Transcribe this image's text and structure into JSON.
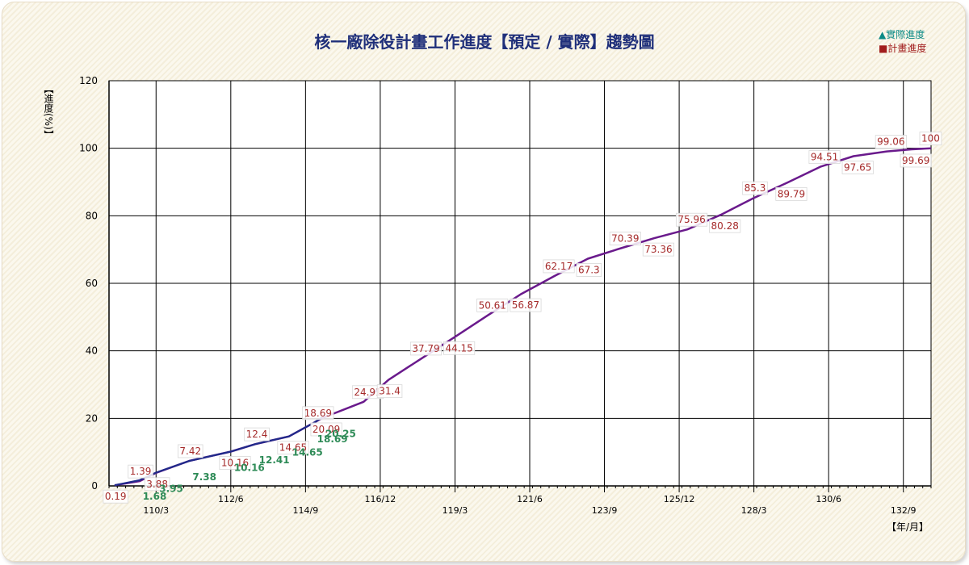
{
  "chart_data": {
    "type": "line",
    "title": "核一廠除役計畫工作進度【預定 / 實際】趨勢圖",
    "xlabel": "【年/月】",
    "ylabel": "【進度(%)】",
    "ylim": [
      0,
      120
    ],
    "yticks": [
      0,
      20,
      40,
      60,
      80,
      100,
      120
    ],
    "xlim": [
      "108/10",
      "133/7"
    ],
    "xtick_labels": [
      "110/3",
      "112/6",
      "114/9",
      "116/12",
      "119/3",
      "121/6",
      "123/9",
      "125/12",
      "128/3",
      "130/6",
      "132/9"
    ],
    "grid": true,
    "legend_position": "top-right",
    "legend": [
      {
        "label": "實際進度",
        "marker": "triangle",
        "color": "#0b8a86"
      },
      {
        "label": "計畫進度",
        "marker": "square",
        "color": "#a11d1d"
      }
    ],
    "series": [
      {
        "name": "計畫進度",
        "color": "#6a1a8c",
        "label_color": "#a52a2a",
        "points": [
          {
            "x": "108/12",
            "y": 0.19,
            "label": "0.19"
          },
          {
            "x": "109/9",
            "y": 1.39,
            "label": "1.39"
          },
          {
            "x": "110/3",
            "y": 3.88,
            "label": "3.88"
          },
          {
            "x": "111/3",
            "y": 7.42,
            "label": "7.42"
          },
          {
            "x": "112/6",
            "y": 10.16,
            "label": "10.16"
          },
          {
            "x": "113/3",
            "y": 12.4,
            "label": "12.4"
          },
          {
            "x": "114/3",
            "y": 14.65,
            "label": "14.65"
          },
          {
            "x": "114/12",
            "y": 18.69,
            "label": "18.69"
          },
          {
            "x": "115/3",
            "y": 20.09,
            "label": "20.09"
          },
          {
            "x": "116/6",
            "y": 24.91,
            "label": "24.91"
          },
          {
            "x": "117/3",
            "y": 31.4,
            "label": "31.4"
          },
          {
            "x": "118/3",
            "y": 37.79,
            "label": "37.79"
          },
          {
            "x": "119/3",
            "y": 44.15,
            "label": "44.15"
          },
          {
            "x": "120/3",
            "y": 50.61,
            "label": "50.61"
          },
          {
            "x": "121/3",
            "y": 56.87,
            "label": "56.87"
          },
          {
            "x": "122/3",
            "y": 62.17,
            "label": "62.17"
          },
          {
            "x": "123/3",
            "y": 67.3,
            "label": "67.3"
          },
          {
            "x": "124/3",
            "y": 70.39,
            "label": "70.39"
          },
          {
            "x": "125/3",
            "y": 73.36,
            "label": "73.36"
          },
          {
            "x": "126/3",
            "y": 75.96,
            "label": "75.96"
          },
          {
            "x": "127/3",
            "y": 80.28,
            "label": "80.28"
          },
          {
            "x": "128/3",
            "y": 85.3,
            "label": "85.3"
          },
          {
            "x": "129/3",
            "y": 89.79,
            "label": "89.79"
          },
          {
            "x": "130/3",
            "y": 94.51,
            "label": "94.51"
          },
          {
            "x": "131/3",
            "y": 97.65,
            "label": "97.65"
          },
          {
            "x": "132/3",
            "y": 99.06,
            "label": "99.06"
          },
          {
            "x": "132/12",
            "y": 99.69,
            "label": "99.69"
          },
          {
            "x": "133/7",
            "y": 100,
            "label": "100"
          }
        ]
      },
      {
        "name": "實際進度",
        "color": "#1f2a8a",
        "label_color": "#2e8b57",
        "points": [
          {
            "x": "108/12",
            "y": 0.19,
            "label": ""
          },
          {
            "x": "109/9",
            "y": 1.68,
            "label": "1.68"
          },
          {
            "x": "110/3",
            "y": 3.95,
            "label": "3.95"
          },
          {
            "x": "111/3",
            "y": 7.38,
            "label": "7.38"
          },
          {
            "x": "112/6",
            "y": 10.16,
            "label": "10.16"
          },
          {
            "x": "113/3",
            "y": 12.41,
            "label": "12.41"
          },
          {
            "x": "114/3",
            "y": 14.65,
            "label": "14.65"
          },
          {
            "x": "114/12",
            "y": 18.69,
            "label": "18.69"
          },
          {
            "x": "115/3",
            "y": 20.25,
            "label": "20.25"
          }
        ]
      }
    ]
  }
}
